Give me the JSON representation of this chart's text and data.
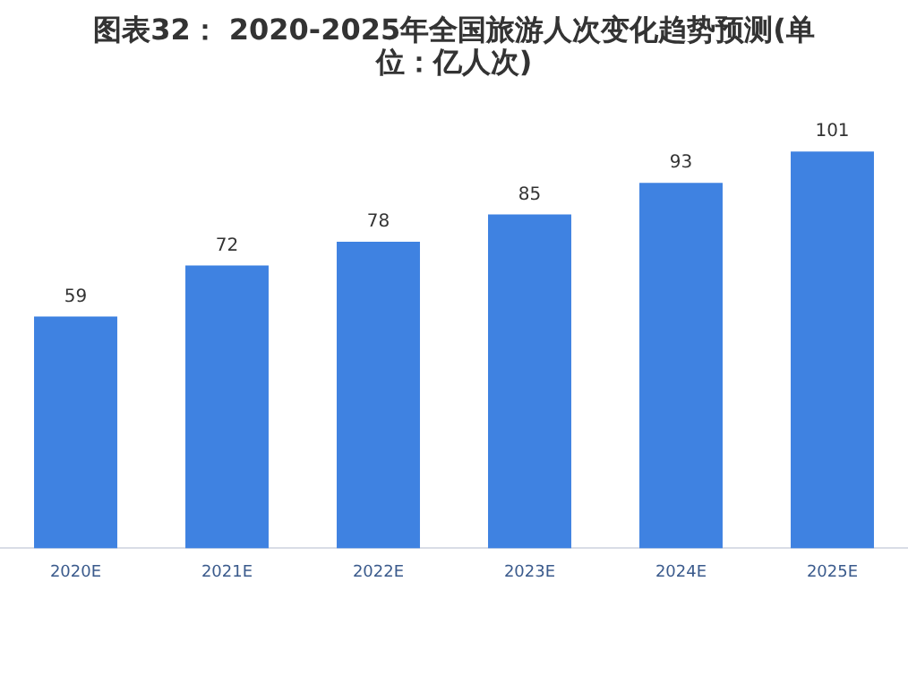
{
  "chart_data": {
    "type": "bar",
    "title": "图表32： 2020-2025年全国旅游人次变化趋势预测(单位：亿人次)",
    "categories": [
      "2020E",
      "2021E",
      "2022E",
      "2023E",
      "2024E",
      "2025E"
    ],
    "values": [
      59,
      72,
      78,
      85,
      93,
      101
    ],
    "color": "#3f82e1",
    "data_labels": true,
    "grid": false,
    "legend": false
  }
}
